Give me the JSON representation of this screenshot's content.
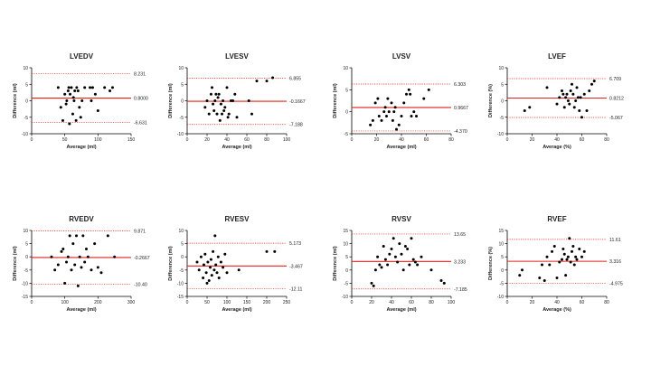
{
  "chart_data": [
    {
      "type": "scatter",
      "title": "LVEDV",
      "xlabel": "Average (ml)",
      "ylabel": "Difference (ml)",
      "xlim": [
        0,
        150
      ],
      "ylim": [
        -10,
        10
      ],
      "xticks": [
        0,
        50,
        100,
        150
      ],
      "yticks": [
        -10,
        -5,
        0,
        5,
        10
      ],
      "mean_line": 0.8,
      "upper_loa": 8.231,
      "lower_loa": -6.631,
      "mean_label": "0.8000",
      "upper_label": "8.231",
      "lower_label": "-6.631",
      "points": [
        [
          40,
          4
        ],
        [
          44,
          -2
        ],
        [
          47,
          -6
        ],
        [
          50,
          2
        ],
        [
          52,
          -1
        ],
        [
          53,
          0
        ],
        [
          55,
          3
        ],
        [
          56,
          4
        ],
        [
          57,
          -7
        ],
        [
          58,
          2
        ],
        [
          60,
          4
        ],
        [
          62,
          -4
        ],
        [
          63,
          1
        ],
        [
          64,
          0
        ],
        [
          65,
          3
        ],
        [
          67,
          -6
        ],
        [
          68,
          4
        ],
        [
          70,
          3
        ],
        [
          72,
          -2
        ],
        [
          74,
          -5
        ],
        [
          76,
          0
        ],
        [
          80,
          4
        ],
        [
          88,
          4
        ],
        [
          90,
          0
        ],
        [
          92,
          4
        ],
        [
          96,
          2
        ],
        [
          100,
          -3
        ],
        [
          110,
          4
        ],
        [
          118,
          3
        ],
        [
          122,
          4
        ]
      ]
    },
    {
      "type": "scatter",
      "title": "LVESV",
      "xlabel": "Average (ml)",
      "ylabel": "Difference (ml)",
      "xlim": [
        0,
        100
      ],
      "ylim": [
        -10,
        10
      ],
      "xticks": [
        0,
        20,
        40,
        60,
        80,
        100
      ],
      "yticks": [
        -10,
        -5,
        0,
        5,
        10
      ],
      "mean_line": -0.1667,
      "upper_loa": 6.855,
      "lower_loa": -7.188,
      "mean_label": "-0.1667",
      "upper_label": "6.855",
      "lower_label": "-7.188",
      "points": [
        [
          18,
          -2
        ],
        [
          20,
          0
        ],
        [
          22,
          -4
        ],
        [
          24,
          2
        ],
        [
          25,
          4
        ],
        [
          26,
          -1
        ],
        [
          27,
          -3
        ],
        [
          28,
          0
        ],
        [
          29,
          2
        ],
        [
          30,
          -4
        ],
        [
          31,
          1
        ],
        [
          32,
          2
        ],
        [
          33,
          -6
        ],
        [
          34,
          -1
        ],
        [
          35,
          -4
        ],
        [
          36,
          0
        ],
        [
          37,
          -3
        ],
        [
          38,
          -2
        ],
        [
          40,
          4
        ],
        [
          41,
          -5
        ],
        [
          42,
          -4
        ],
        [
          44,
          0
        ],
        [
          46,
          0
        ],
        [
          48,
          2
        ],
        [
          50,
          -5
        ],
        [
          62,
          0
        ],
        [
          65,
          -4
        ],
        [
          70,
          6
        ],
        [
          80,
          6
        ],
        [
          86,
          7
        ]
      ]
    },
    {
      "type": "scatter",
      "title": "LVSV",
      "xlabel": "Average (ml)",
      "ylabel": "Difference (ml)",
      "xlim": [
        0,
        80
      ],
      "ylim": [
        -5,
        10
      ],
      "xticks": [
        0,
        20,
        40,
        60,
        80
      ],
      "yticks": [
        -5,
        0,
        5,
        10
      ],
      "mean_line": 0.9667,
      "upper_loa": 6.303,
      "lower_loa": -4.37,
      "mean_label": "0.9667",
      "upper_label": "6.303",
      "lower_label": "-4.370",
      "points": [
        [
          15,
          -3
        ],
        [
          17,
          -2
        ],
        [
          19,
          2
        ],
        [
          21,
          3
        ],
        [
          22,
          -1
        ],
        [
          24,
          -2
        ],
        [
          26,
          0
        ],
        [
          27,
          1
        ],
        [
          28,
          -1
        ],
        [
          29,
          3
        ],
        [
          30,
          0
        ],
        [
          32,
          2
        ],
        [
          33,
          -2
        ],
        [
          34,
          0
        ],
        [
          35,
          1
        ],
        [
          36,
          -4
        ],
        [
          38,
          -3
        ],
        [
          40,
          -1
        ],
        [
          42,
          2
        ],
        [
          44,
          4
        ],
        [
          46,
          5
        ],
        [
          47,
          4
        ],
        [
          48,
          -1
        ],
        [
          50,
          0
        ],
        [
          52,
          -1
        ],
        [
          58,
          3
        ],
        [
          62,
          5
        ]
      ]
    },
    {
      "type": "scatter",
      "title": "LVEF",
      "xlabel": "Average (%)",
      "ylabel": "Difference (%)",
      "xlim": [
        0,
        80
      ],
      "ylim": [
        -10,
        10
      ],
      "xticks": [
        0,
        20,
        40,
        60,
        80
      ],
      "yticks": [
        -10,
        -5,
        0,
        5,
        10
      ],
      "mean_line": 0.8212,
      "upper_loa": 6.709,
      "lower_loa": -5.067,
      "mean_label": "0.8212",
      "upper_label": "6.709",
      "lower_label": "-5.067",
      "points": [
        [
          14,
          -3
        ],
        [
          18,
          -2
        ],
        [
          32,
          4
        ],
        [
          40,
          -1
        ],
        [
          42,
          1
        ],
        [
          44,
          3
        ],
        [
          45,
          2
        ],
        [
          46,
          -2
        ],
        [
          47,
          1
        ],
        [
          48,
          2
        ],
        [
          49,
          0
        ],
        [
          50,
          -1
        ],
        [
          51,
          3
        ],
        [
          52,
          5
        ],
        [
          53,
          2
        ],
        [
          54,
          -2
        ],
        [
          55,
          0
        ],
        [
          56,
          4
        ],
        [
          57,
          1
        ],
        [
          58,
          -3
        ],
        [
          59,
          1
        ],
        [
          60,
          -5
        ],
        [
          62,
          2
        ],
        [
          64,
          -3
        ],
        [
          66,
          3
        ],
        [
          68,
          5
        ],
        [
          70,
          6
        ]
      ]
    },
    {
      "type": "scatter",
      "title": "RVEDV",
      "xlabel": "Average (ml)",
      "ylabel": "Difference (ml)",
      "xlim": [
        0,
        300
      ],
      "ylim": [
        -15,
        10
      ],
      "xticks": [
        0,
        100,
        200,
        300
      ],
      "yticks": [
        -15,
        -10,
        -5,
        0,
        5,
        10
      ],
      "mean_line": -0.2667,
      "upper_loa": 9.871,
      "lower_loa": -10.4,
      "mean_label": "-0.2667",
      "upper_label": "9.871",
      "lower_label": "-10.40",
      "points": [
        [
          60,
          0
        ],
        [
          70,
          -5
        ],
        [
          80,
          -3
        ],
        [
          90,
          2
        ],
        [
          95,
          3
        ],
        [
          100,
          -10
        ],
        [
          105,
          -2
        ],
        [
          110,
          0
        ],
        [
          115,
          8
        ],
        [
          120,
          -5
        ],
        [
          125,
          5
        ],
        [
          130,
          -3
        ],
        [
          135,
          8
        ],
        [
          140,
          -11
        ],
        [
          145,
          0
        ],
        [
          150,
          -4
        ],
        [
          155,
          8
        ],
        [
          160,
          -2
        ],
        [
          165,
          3
        ],
        [
          170,
          0
        ],
        [
          180,
          -5
        ],
        [
          190,
          5
        ],
        [
          200,
          -4
        ],
        [
          210,
          -6
        ],
        [
          230,
          8
        ],
        [
          250,
          0
        ]
      ]
    },
    {
      "type": "scatter",
      "title": "RVESV",
      "xlabel": "Average (ml)",
      "ylabel": "Difference (ml)",
      "xlim": [
        0,
        250
      ],
      "ylim": [
        -15,
        10
      ],
      "xticks": [
        0,
        50,
        100,
        150,
        200,
        250
      ],
      "yticks": [
        -15,
        -10,
        -5,
        0,
        5,
        10
      ],
      "mean_line": -3.467,
      "upper_loa": 5.173,
      "lower_loa": -12.11,
      "mean_label": "-3.467",
      "upper_label": "5.173",
      "lower_label": "-12.11",
      "points": [
        [
          25,
          -2
        ],
        [
          30,
          -5
        ],
        [
          35,
          0
        ],
        [
          40,
          -8
        ],
        [
          42,
          -3
        ],
        [
          45,
          1
        ],
        [
          48,
          -6
        ],
        [
          50,
          -10
        ],
        [
          52,
          -2
        ],
        [
          55,
          -9
        ],
        [
          58,
          -4
        ],
        [
          60,
          -1
        ],
        [
          62,
          -7
        ],
        [
          65,
          2
        ],
        [
          68,
          -5
        ],
        [
          70,
          8
        ],
        [
          72,
          -3
        ],
        [
          75,
          -6
        ],
        [
          78,
          0
        ],
        [
          80,
          -8
        ],
        [
          85,
          -2
        ],
        [
          90,
          -4
        ],
        [
          95,
          1
        ],
        [
          100,
          -6
        ],
        [
          130,
          -5
        ],
        [
          200,
          2
        ],
        [
          220,
          2
        ]
      ]
    },
    {
      "type": "scatter",
      "title": "RVSV",
      "xlabel": "Average (ml)",
      "ylabel": "Difference (ml)",
      "xlim": [
        0,
        100
      ],
      "ylim": [
        -10,
        15
      ],
      "xticks": [
        0,
        20,
        40,
        60,
        80,
        100
      ],
      "yticks": [
        -10,
        -5,
        0,
        5,
        10,
        15
      ],
      "mean_line": 3.233,
      "upper_loa": 13.65,
      "lower_loa": -7.185,
      "mean_label": "3.233",
      "upper_label": "13.65",
      "lower_label": "-7.185",
      "points": [
        [
          20,
          -5
        ],
        [
          22,
          -6
        ],
        [
          24,
          0
        ],
        [
          26,
          5
        ],
        [
          28,
          2
        ],
        [
          30,
          1
        ],
        [
          32,
          9
        ],
        [
          34,
          4
        ],
        [
          36,
          2
        ],
        [
          38,
          6
        ],
        [
          40,
          8
        ],
        [
          42,
          12
        ],
        [
          44,
          5
        ],
        [
          46,
          3
        ],
        [
          48,
          10
        ],
        [
          50,
          6
        ],
        [
          52,
          0
        ],
        [
          54,
          9
        ],
        [
          56,
          8
        ],
        [
          58,
          2
        ],
        [
          60,
          12
        ],
        [
          62,
          4
        ],
        [
          64,
          3
        ],
        [
          66,
          2
        ],
        [
          70,
          5
        ],
        [
          80,
          0
        ],
        [
          90,
          -4
        ],
        [
          93,
          -5
        ]
      ]
    },
    {
      "type": "scatter",
      "title": "RVEF",
      "xlabel": "Average (%)",
      "ylabel": "Difference (%)",
      "xlim": [
        0,
        80
      ],
      "ylim": [
        -10,
        15
      ],
      "xticks": [
        0,
        20,
        40,
        60,
        80
      ],
      "yticks": [
        -10,
        -5,
        0,
        5,
        10,
        15
      ],
      "mean_line": 3.316,
      "upper_loa": 11.61,
      "lower_loa": -4.975,
      "mean_label": "3.316",
      "upper_label": "11.61",
      "lower_label": "-4.975",
      "points": [
        [
          10,
          -2
        ],
        [
          12,
          0
        ],
        [
          26,
          -3
        ],
        [
          28,
          2
        ],
        [
          30,
          -4
        ],
        [
          32,
          5
        ],
        [
          34,
          2
        ],
        [
          36,
          7
        ],
        [
          38,
          9
        ],
        [
          40,
          -3
        ],
        [
          42,
          3
        ],
        [
          44,
          4
        ],
        [
          45,
          8
        ],
        [
          46,
          6
        ],
        [
          47,
          -2
        ],
        [
          48,
          4
        ],
        [
          49,
          5
        ],
        [
          50,
          12
        ],
        [
          51,
          3
        ],
        [
          52,
          7
        ],
        [
          53,
          9
        ],
        [
          54,
          2
        ],
        [
          55,
          5
        ],
        [
          56,
          4
        ],
        [
          58,
          8
        ],
        [
          60,
          5
        ],
        [
          62,
          7
        ]
      ]
    }
  ]
}
